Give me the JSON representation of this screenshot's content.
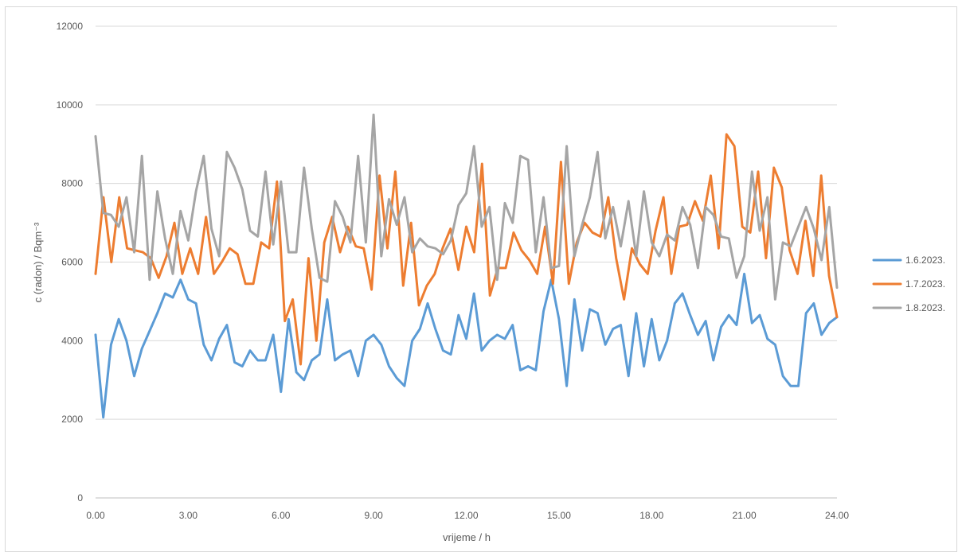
{
  "chart_data": {
    "type": "line",
    "title": "",
    "xlabel": "vrijeme / h",
    "ylabel": "c (radon) / Bqm⁻³",
    "xlim": [
      0,
      24
    ],
    "ylim": [
      0,
      12000
    ],
    "x_ticks": [
      0,
      3,
      6,
      9,
      12,
      15,
      18,
      21,
      24
    ],
    "x_tick_labels": [
      "0.00",
      "3.00",
      "6.00",
      "9.00",
      "12.00",
      "15.00",
      "18.00",
      "21.00",
      "24.00"
    ],
    "y_ticks": [
      0,
      2000,
      4000,
      6000,
      8000,
      10000,
      12000
    ],
    "y_tick_labels": [
      "0",
      "2000",
      "4000",
      "6000",
      "8000",
      "10000",
      "12000"
    ],
    "grid": true,
    "legend_position": "right",
    "colors": [
      "#5b9bd5",
      "#ed7d31",
      "#a5a5a5"
    ],
    "x_step_hours": 0.2,
    "series": [
      {
        "name": "1.6.2023.",
        "values": [
          4150,
          2050,
          3900,
          4550,
          4000,
          3100,
          3800,
          4250,
          4700,
          5200,
          5100,
          5550,
          5050,
          4950,
          3900,
          3500,
          4050,
          4400,
          3450,
          3350,
          3750,
          3500,
          3500,
          4150,
          2700,
          4550,
          3200,
          3000,
          3500,
          3650,
          5050,
          3500,
          3650,
          3750,
          3100,
          4000,
          4150,
          3900,
          3350,
          3050,
          2850,
          4000,
          4300,
          4950,
          4300,
          3750,
          3650,
          4650,
          4050,
          5200,
          3750,
          4000,
          4150,
          4050,
          4400,
          3250,
          3350,
          3250,
          4750,
          5550,
          4550,
          2850,
          5050,
          3750,
          4800,
          4700,
          3900,
          4300,
          4400,
          3100,
          4700,
          3350,
          4550,
          3500,
          4000,
          4950,
          5200,
          4650,
          4150,
          4500,
          3500,
          4350,
          4650,
          4400,
          5700,
          4450,
          4650,
          4050,
          3900,
          3100,
          2850,
          2850,
          4700,
          4950,
          4150,
          4450,
          4600
        ]
      },
      {
        "name": "1.7.2023.",
        "values": [
          5700,
          7650,
          6000,
          7650,
          6350,
          6300,
          6250,
          6100,
          5600,
          6150,
          7000,
          5700,
          6350,
          5700,
          7150,
          5700,
          6000,
          6350,
          6200,
          5450,
          5450,
          6500,
          6350,
          8050,
          4500,
          5050,
          3400,
          6100,
          4000,
          6500,
          7150,
          6250,
          6900,
          6400,
          6350,
          5300,
          8200,
          6350,
          8300,
          5400,
          7000,
          4900,
          5400,
          5700,
          6350,
          6850,
          5800,
          6900,
          6250,
          8500,
          5150,
          5850,
          5850,
          6750,
          6300,
          6050,
          5700,
          6900,
          5450,
          8550,
          5450,
          6500,
          7000,
          6750,
          6650,
          7650,
          6100,
          5050,
          6350,
          5950,
          5700,
          6800,
          7650,
          5700,
          6900,
          6950,
          7550,
          7050,
          8200,
          6350,
          9250,
          8950,
          6900,
          6750,
          8300,
          6100,
          8400,
          7900,
          6300,
          5700,
          7050,
          5650,
          8200,
          5650,
          4600
        ]
      },
      {
        "name": "1.8.2023.",
        "values": [
          9200,
          7250,
          7200,
          6900,
          7650,
          6250,
          8700,
          5550,
          7800,
          6600,
          5700,
          7300,
          6550,
          7800,
          8700,
          6850,
          6150,
          8800,
          8400,
          7850,
          6800,
          6650,
          8300,
          6450,
          8050,
          6250,
          6250,
          8400,
          6850,
          5600,
          5500,
          7550,
          7150,
          6500,
          8700,
          6500,
          9750,
          6150,
          7600,
          6950,
          7650,
          6250,
          6600,
          6400,
          6350,
          6200,
          6550,
          7450,
          7750,
          8950,
          6900,
          7400,
          5550,
          7500,
          7000,
          8700,
          8600,
          6250,
          7650,
          5850,
          5900,
          8950,
          6150,
          6950,
          7650,
          8800,
          6600,
          7400,
          6400,
          7550,
          6150,
          7800,
          6500,
          6150,
          6700,
          6550,
          7400,
          6950,
          5850,
          7400,
          7200,
          6650,
          6600,
          5600,
          6150,
          8300,
          6800,
          7650,
          5050,
          6500,
          6400,
          6900,
          7400,
          6850,
          6050,
          7400,
          5350
        ]
      }
    ]
  }
}
